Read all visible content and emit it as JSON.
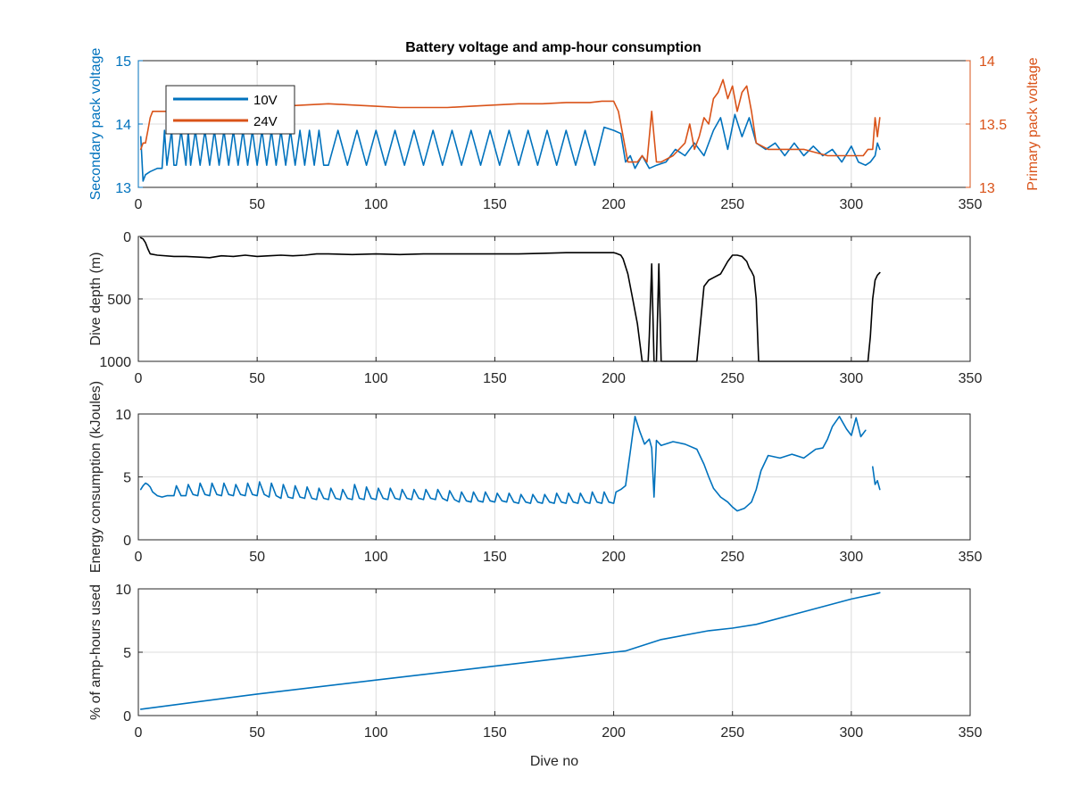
{
  "figure": {
    "title": "Battery voltage and amp-hour consumption"
  },
  "colors": {
    "blue": "#0072BD",
    "orange": "#D95319",
    "black": "#000000",
    "grid": "#dcdcdc",
    "axis": "#262626"
  },
  "chart_data": [
    {
      "type": "line",
      "title": "Battery voltage and amp-hour consumption",
      "xlabel": "",
      "ylabel": "Secondary pack voltage",
      "ylabel_right": "Primary pack voltage",
      "xlim": [
        0,
        350
      ],
      "ylim": [
        13,
        15
      ],
      "ylim_right": [
        13,
        14
      ],
      "xticks": [
        0,
        50,
        100,
        150,
        200,
        250,
        300,
        350
      ],
      "yticks": [
        13,
        14,
        15
      ],
      "yticks_right": [
        13,
        13.5,
        14
      ],
      "grid": true,
      "legend": {
        "position": "top-left",
        "entries": [
          "10V",
          "24V"
        ]
      },
      "series": [
        {
          "name": "10V",
          "axis": "left",
          "color": "#0072BD",
          "x": [
            1,
            2,
            3,
            5,
            8,
            10,
            11,
            12,
            14,
            15,
            16,
            18,
            20,
            21,
            22,
            24,
            26,
            28,
            30,
            32,
            34,
            36,
            38,
            40,
            42,
            44,
            46,
            48,
            50,
            52,
            54,
            56,
            58,
            60,
            62,
            64,
            66,
            68,
            70,
            72,
            74,
            76,
            78,
            80,
            84,
            88,
            92,
            96,
            100,
            104,
            108,
            112,
            116,
            120,
            124,
            128,
            132,
            136,
            140,
            144,
            148,
            152,
            156,
            160,
            164,
            168,
            172,
            176,
            180,
            184,
            188,
            192,
            196,
            200,
            203,
            205,
            207,
            209,
            212,
            215,
            218,
            222,
            226,
            230,
            234,
            238,
            242,
            245,
            248,
            251,
            254,
            257,
            260,
            264,
            268,
            272,
            276,
            280,
            284,
            288,
            292,
            296,
            300,
            303,
            306,
            308,
            310,
            311,
            312
          ],
          "y": [
            13.8,
            13.1,
            13.2,
            13.25,
            13.3,
            13.3,
            13.9,
            13.35,
            13.9,
            13.35,
            13.35,
            13.9,
            13.35,
            13.9,
            13.35,
            13.9,
            13.35,
            13.9,
            13.35,
            13.9,
            13.35,
            13.9,
            13.35,
            13.9,
            13.35,
            13.9,
            13.35,
            13.9,
            13.35,
            13.9,
            13.35,
            13.9,
            13.35,
            13.9,
            13.35,
            13.9,
            13.35,
            13.9,
            13.35,
            13.9,
            13.35,
            13.9,
            13.35,
            13.35,
            13.9,
            13.35,
            13.9,
            13.35,
            13.9,
            13.35,
            13.9,
            13.35,
            13.9,
            13.35,
            13.9,
            13.35,
            13.9,
            13.35,
            13.9,
            13.35,
            13.9,
            13.35,
            13.9,
            13.35,
            13.9,
            13.35,
            13.9,
            13.35,
            13.9,
            13.35,
            13.9,
            13.35,
            13.95,
            13.9,
            13.85,
            13.4,
            13.5,
            13.3,
            13.5,
            13.3,
            13.35,
            13.4,
            13.6,
            13.5,
            13.7,
            13.5,
            13.9,
            14.1,
            13.6,
            14.15,
            13.8,
            14.1,
            13.7,
            13.6,
            13.7,
            13.5,
            13.7,
            13.5,
            13.65,
            13.5,
            13.6,
            13.4,
            13.65,
            13.4,
            13.35,
            13.4,
            13.5,
            13.7,
            13.6
          ]
        },
        {
          "name": "24V",
          "axis": "right",
          "color": "#D95319",
          "x": [
            1,
            2,
            3,
            4,
            5,
            6,
            8,
            10,
            12,
            15,
            20,
            30,
            40,
            50,
            60,
            70,
            80,
            90,
            100,
            110,
            120,
            130,
            140,
            150,
            160,
            170,
            180,
            190,
            195,
            200,
            202,
            204,
            206,
            208,
            210,
            212,
            214,
            216,
            218,
            220,
            225,
            230,
            232,
            234,
            236,
            238,
            240,
            242,
            244,
            246,
            248,
            250,
            252,
            254,
            256,
            258,
            260,
            265,
            270,
            280,
            290,
            300,
            305,
            307,
            309,
            310,
            311,
            312
          ],
          "y": [
            13.3,
            13.35,
            13.35,
            13.45,
            13.55,
            13.6,
            13.6,
            13.6,
            13.6,
            13.6,
            13.6,
            13.62,
            13.64,
            13.66,
            13.64,
            13.65,
            13.66,
            13.65,
            13.64,
            13.63,
            13.63,
            13.63,
            13.64,
            13.65,
            13.66,
            13.66,
            13.67,
            13.67,
            13.68,
            13.68,
            13.6,
            13.4,
            13.2,
            13.2,
            13.2,
            13.25,
            13.2,
            13.6,
            13.2,
            13.2,
            13.25,
            13.35,
            13.5,
            13.3,
            13.4,
            13.55,
            13.5,
            13.7,
            13.75,
            13.85,
            13.7,
            13.8,
            13.6,
            13.75,
            13.8,
            13.6,
            13.35,
            13.3,
            13.3,
            13.3,
            13.25,
            13.25,
            13.25,
            13.3,
            13.3,
            13.55,
            13.4,
            13.55
          ]
        }
      ]
    },
    {
      "type": "line",
      "title": "",
      "xlabel": "",
      "ylabel": "Dive depth (m)",
      "xlim": [
        0,
        350
      ],
      "ylim": [
        1000,
        0
      ],
      "y_reversed": true,
      "xticks": [
        0,
        50,
        100,
        150,
        200,
        250,
        300,
        350
      ],
      "yticks": [
        0,
        500,
        1000
      ],
      "grid": true,
      "series": [
        {
          "color": "#000000",
          "x": [
            1,
            2,
            3,
            4,
            5,
            8,
            15,
            20,
            25,
            30,
            35,
            40,
            45,
            50,
            55,
            60,
            65,
            70,
            75,
            80,
            90,
            100,
            110,
            120,
            130,
            140,
            150,
            160,
            170,
            180,
            190,
            200,
            201,
            203,
            204,
            206,
            208,
            210,
            212,
            213,
            214,
            214.5,
            215,
            216,
            217,
            218,
            219,
            220,
            225,
            230,
            235,
            236,
            237,
            238,
            240,
            242,
            245,
            248,
            250,
            252,
            254,
            256,
            257,
            258,
            259,
            260,
            261,
            262,
            265,
            270,
            280,
            290,
            300,
            303,
            305,
            306,
            307,
            308,
            309,
            310,
            311,
            312
          ],
          "y": [
            10,
            20,
            50,
            100,
            140,
            150,
            160,
            160,
            165,
            170,
            155,
            160,
            150,
            160,
            155,
            150,
            155,
            150,
            140,
            140,
            145,
            140,
            145,
            140,
            140,
            140,
            140,
            140,
            135,
            130,
            130,
            130,
            135,
            150,
            180,
            300,
            500,
            700,
            1000,
            1000,
            1000,
            1000,
            800,
            220,
            1000,
            1000,
            220,
            1000,
            1000,
            1000,
            1000,
            800,
            600,
            400,
            350,
            330,
            300,
            200,
            150,
            150,
            160,
            200,
            250,
            280,
            320,
            500,
            1000,
            1000,
            1000,
            1000,
            1000,
            1000,
            1000,
            1000,
            1000,
            1000,
            1000,
            800,
            500,
            350,
            310,
            290
          ]
        }
      ]
    },
    {
      "type": "line",
      "title": "",
      "xlabel": "",
      "ylabel": "Energy consumption (kJoules)",
      "xlim": [
        0,
        350
      ],
      "ylim": [
        0,
        10
      ],
      "xticks": [
        0,
        50,
        100,
        150,
        200,
        250,
        300,
        350
      ],
      "yticks": [
        0,
        5,
        10
      ],
      "grid": true,
      "series": [
        {
          "color": "#0072BD",
          "x": [
            1,
            2,
            3,
            4,
            5,
            6,
            8,
            10,
            12,
            15,
            16,
            18,
            20,
            21,
            23,
            25,
            26,
            28,
            30,
            31,
            33,
            35,
            36,
            38,
            40,
            41,
            43,
            45,
            46,
            48,
            50,
            51,
            53,
            55,
            56,
            58,
            60,
            61,
            63,
            65,
            66,
            68,
            70,
            71,
            73,
            75,
            76,
            78,
            80,
            81,
            83,
            85,
            86,
            88,
            90,
            91,
            93,
            95,
            96,
            98,
            100,
            101,
            103,
            105,
            106,
            108,
            110,
            111,
            113,
            115,
            116,
            118,
            120,
            121,
            123,
            125,
            126,
            128,
            130,
            131,
            133,
            135,
            136,
            138,
            140,
            141,
            143,
            145,
            146,
            148,
            150,
            151,
            153,
            155,
            156,
            158,
            160,
            161,
            163,
            165,
            166,
            168,
            170,
            171,
            173,
            175,
            176,
            178,
            180,
            181,
            183,
            185,
            186,
            188,
            190,
            191,
            193,
            195,
            196,
            198,
            200,
            201,
            203,
            205,
            207,
            209,
            211,
            213,
            215,
            216,
            217,
            218,
            220,
            225,
            230,
            235,
            238,
            240,
            242,
            245,
            248,
            250,
            252,
            255,
            258,
            260,
            262,
            265,
            270,
            275,
            280,
            285,
            288,
            290,
            292,
            295,
            298,
            300,
            302,
            304,
            306
          ],
          "y": [
            4.0,
            4.3,
            4.5,
            4.4,
            4.2,
            3.8,
            3.5,
            3.4,
            3.5,
            3.5,
            4.3,
            3.5,
            3.5,
            4.4,
            3.6,
            3.5,
            4.5,
            3.6,
            3.5,
            4.5,
            3.6,
            3.5,
            4.5,
            3.6,
            3.5,
            4.4,
            3.6,
            3.5,
            4.5,
            3.6,
            3.5,
            4.6,
            3.6,
            3.4,
            4.5,
            3.5,
            3.3,
            4.4,
            3.4,
            3.3,
            4.3,
            3.4,
            3.3,
            4.2,
            3.3,
            3.2,
            4.1,
            3.3,
            3.2,
            4.1,
            3.3,
            3.2,
            4.0,
            3.3,
            3.2,
            4.4,
            3.3,
            3.2,
            4.2,
            3.3,
            3.2,
            4.1,
            3.3,
            3.2,
            4.1,
            3.3,
            3.2,
            4.0,
            3.3,
            3.2,
            4.0,
            3.3,
            3.2,
            4.0,
            3.3,
            3.2,
            4.0,
            3.3,
            3.1,
            3.9,
            3.2,
            3.0,
            3.8,
            3.1,
            3.0,
            3.8,
            3.1,
            3.0,
            3.8,
            3.1,
            3.0,
            3.7,
            3.1,
            3.0,
            3.7,
            3.0,
            2.9,
            3.6,
            3.0,
            2.9,
            3.6,
            3.0,
            2.9,
            3.6,
            3.0,
            2.9,
            3.7,
            3.0,
            2.9,
            3.7,
            3.0,
            2.9,
            3.7,
            3.0,
            2.9,
            3.8,
            3.0,
            2.9,
            3.8,
            3.0,
            2.9,
            3.8,
            4.0,
            4.3,
            7.0,
            9.8,
            8.6,
            7.6,
            8.0,
            7.3,
            3.4,
            7.9,
            7.5,
            7.8,
            7.6,
            7.2,
            6.0,
            5.0,
            4.1,
            3.4,
            3.0,
            2.6,
            2.3,
            2.5,
            3.0,
            4.0,
            5.5,
            6.7,
            6.5,
            6.8,
            6.5,
            7.2,
            7.3,
            8.0,
            9.0,
            9.8,
            8.8,
            8.3,
            9.7,
            8.2,
            8.7
          ]
        },
        {
          "color": "#0072BD",
          "x": [
            309,
            310,
            311,
            312
          ],
          "y": [
            5.8,
            4.4,
            4.7,
            4.0
          ]
        }
      ]
    },
    {
      "type": "line",
      "title": "",
      "xlabel": "Dive no",
      "ylabel": "% of amp-hours used",
      "xlim": [
        0,
        350
      ],
      "ylim": [
        0,
        10
      ],
      "xticks": [
        0,
        50,
        100,
        150,
        200,
        250,
        300,
        350
      ],
      "yticks": [
        0,
        5,
        10
      ],
      "grid": true,
      "series": [
        {
          "color": "#0072BD",
          "x": [
            1,
            50,
            100,
            150,
            200,
            205,
            220,
            240,
            250,
            260,
            280,
            300,
            310,
            312
          ],
          "y": [
            0.5,
            1.7,
            2.8,
            3.9,
            5.0,
            5.1,
            6.0,
            6.7,
            6.9,
            7.2,
            8.2,
            9.2,
            9.6,
            9.7
          ]
        }
      ]
    }
  ]
}
